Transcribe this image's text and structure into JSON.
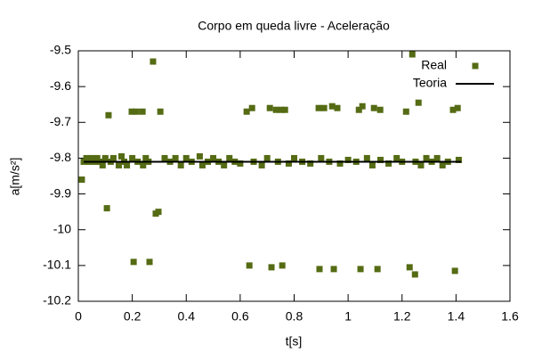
{
  "chart_data": {
    "type": "scatter",
    "title": "Corpo em queda livre - Aceleração",
    "x_label": "t[s]",
    "y_label": "a[m/s²]",
    "xlim": [
      0,
      1.6
    ],
    "xticks": [
      0,
      0.2,
      0.4,
      0.6,
      0.8,
      1,
      1.2,
      1.4,
      1.6
    ],
    "ylim": [
      -10.2,
      -9.5
    ],
    "yticks": [
      -9.5,
      -9.6,
      -9.7,
      -9.8,
      -9.9,
      -10,
      -10.1,
      -10.2
    ],
    "legend": "top-right",
    "series": [
      {
        "name": "Real",
        "color": "#556b14",
        "mode": "markers",
        "x": [
          0.013,
          0.106,
          0.112,
          0.198,
          0.215,
          0.205,
          0.238,
          0.264,
          0.277,
          0.287,
          0.297,
          0.304,
          0.634,
          0.624,
          0.644,
          0.71,
          0.733,
          0.752,
          0.766,
          0.716,
          0.756,
          0.891,
          0.911,
          0.894,
          0.941,
          0.96,
          0.947,
          1.04,
          1.053,
          1.096,
          1.119,
          1.046,
          1.109,
          1.215,
          1.228,
          1.248,
          1.238,
          1.261,
          1.389,
          1.406,
          1.396,
          0.02,
          0.03,
          0.04,
          0.05,
          0.06,
          0.07,
          0.08,
          0.09,
          0.1,
          0.12,
          0.13,
          0.15,
          0.16,
          0.17,
          0.18,
          0.2,
          0.22,
          0.24,
          0.25,
          0.26,
          0.32,
          0.34,
          0.36,
          0.38,
          0.4,
          0.42,
          0.45,
          0.46,
          0.48,
          0.5,
          0.52,
          0.54,
          0.56,
          0.58,
          0.6,
          0.65,
          0.68,
          0.7,
          0.74,
          0.78,
          0.8,
          0.83,
          0.86,
          0.9,
          0.93,
          0.97,
          1.0,
          1.03,
          1.07,
          1.09,
          1.12,
          1.15,
          1.18,
          1.2,
          1.25,
          1.27,
          1.29,
          1.31,
          1.33,
          1.35,
          1.37,
          1.41
        ],
        "values": [
          -9.86,
          -9.94,
          -9.68,
          -9.67,
          -9.67,
          -10.09,
          -9.67,
          -10.09,
          -9.53,
          -9.955,
          -9.95,
          -9.67,
          -10.1,
          -9.67,
          -9.66,
          -9.66,
          -9.665,
          -9.665,
          -9.665,
          -10.105,
          -10.1,
          -9.66,
          -9.66,
          -10.11,
          -9.655,
          -9.66,
          -10.11,
          -9.665,
          -9.655,
          -9.66,
          -9.665,
          -10.11,
          -10.11,
          -9.67,
          -10.105,
          -10.125,
          -9.51,
          -9.645,
          -9.665,
          -9.66,
          -10.115,
          -9.81,
          -9.8,
          -9.81,
          -9.8,
          -9.81,
          -9.8,
          -9.81,
          -9.82,
          -9.8,
          -9.81,
          -9.8,
          -9.82,
          -9.795,
          -9.81,
          -9.82,
          -9.8,
          -9.81,
          -9.82,
          -9.8,
          -9.81,
          -9.8,
          -9.81,
          -9.8,
          -9.82,
          -9.8,
          -9.81,
          -9.795,
          -9.82,
          -9.81,
          -9.8,
          -9.81,
          -9.82,
          -9.8,
          -9.81,
          -9.815,
          -9.81,
          -9.82,
          -9.8,
          -9.81,
          -9.815,
          -9.8,
          -9.81,
          -9.815,
          -9.8,
          -9.81,
          -9.815,
          -9.805,
          -9.81,
          -9.8,
          -9.82,
          -9.805,
          -9.815,
          -9.8,
          -9.81,
          -9.81,
          -9.82,
          -9.8,
          -9.81,
          -9.8,
          -9.82,
          -9.81,
          -9.805
        ]
      },
      {
        "name": "Teoria",
        "color": "#000000",
        "mode": "lines",
        "x": [
          0.02,
          1.42
        ],
        "values": [
          -9.81,
          -9.81
        ]
      }
    ]
  }
}
